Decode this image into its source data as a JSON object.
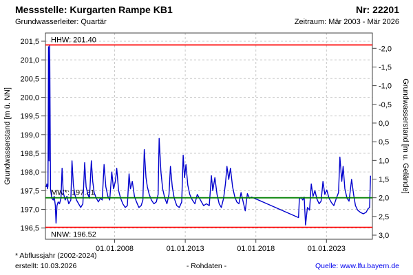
{
  "header": {
    "title": "Messstelle: Kurgarten Rampe KB1",
    "station_number": "Nr: 22201",
    "aquifer": "Grundwasserleiter: Quartär",
    "period": "Zeitraum: Mär 2003 - Mär 2026"
  },
  "footer": {
    "note": "* Abflussjahr (2002-2024)",
    "created": "erstellt:  10.03.2026",
    "center_label": "- Rohdaten -",
    "source": "Quelle: www.lfu.bayern.de"
  },
  "colors": {
    "series": "#0000cd",
    "extreme_line": "#ff0000",
    "mean_line": "#008000",
    "grid": "#c9c9c9",
    "frame": "#404040",
    "text": "#000000",
    "link": "#0000ee"
  },
  "chart_data": {
    "type": "line",
    "title": "",
    "xlabel": "",
    "ylabel_left": "Grundwasserstand [m ü. NN]",
    "ylabel_right": "Grundwasserstand [m u. Gelände]",
    "x_range": [
      2003.1,
      2026.25
    ],
    "y_left_range": [
      196.2,
      201.72
    ],
    "ground_level_m_nn": 199.31,
    "grid": true,
    "x_ticks": [
      {
        "year": 2008,
        "label": "01.01.2008"
      },
      {
        "year": 2013,
        "label": "01.01.2013"
      },
      {
        "year": 2018,
        "label": "01.01.2018"
      },
      {
        "year": 2023,
        "label": "01.01.2023"
      }
    ],
    "y_left_ticks": [
      {
        "v": 196.5,
        "label": "196,5"
      },
      {
        "v": 197.0,
        "label": "197,0"
      },
      {
        "v": 197.5,
        "label": "197,5"
      },
      {
        "v": 198.0,
        "label": "198,0"
      },
      {
        "v": 198.5,
        "label": "198,5"
      },
      {
        "v": 199.0,
        "label": "199,0"
      },
      {
        "v": 199.5,
        "label": "199,5"
      },
      {
        "v": 200.0,
        "label": "200,0"
      },
      {
        "v": 200.5,
        "label": "200,5"
      },
      {
        "v": 201.0,
        "label": "201,0"
      },
      {
        "v": 201.5,
        "label": "201,5"
      }
    ],
    "y_right_ticks": [
      {
        "v": -2.0,
        "label": "-2,0"
      },
      {
        "v": -1.5,
        "label": "-1,5"
      },
      {
        "v": -1.0,
        "label": "-1,0"
      },
      {
        "v": -0.5,
        "label": "-0,5"
      },
      {
        "v": 0.0,
        "label": "0,0"
      },
      {
        "v": 0.5,
        "label": "0,5"
      },
      {
        "v": 1.0,
        "label": "1,0"
      },
      {
        "v": 1.5,
        "label": "1,5"
      },
      {
        "v": 2.0,
        "label": "2,0"
      },
      {
        "v": 2.5,
        "label": "2,5"
      },
      {
        "v": 3.0,
        "label": "3,0"
      }
    ],
    "reference_lines": [
      {
        "name": "HHW",
        "label": "HHW: 201.40",
        "value": 201.4,
        "color": "#ff0000",
        "label_pos": "above"
      },
      {
        "name": "MW",
        "label": "MW*: 197.31",
        "value": 197.31,
        "color": "#008000",
        "label_pos": "above"
      },
      {
        "name": "NNW",
        "label": "NNW: 196.52",
        "value": 196.52,
        "color": "#ff0000",
        "label_pos": "below"
      }
    ],
    "series": [
      {
        "name": "Grundwasserstand Rohdaten",
        "color": "#0000cd",
        "points": [
          [
            2003.15,
            197.6
          ],
          [
            2003.2,
            197.68
          ],
          [
            2003.24,
            197.55
          ],
          [
            2003.28,
            197.62
          ],
          [
            2003.32,
            201.35
          ],
          [
            2003.36,
            198.3
          ],
          [
            2003.4,
            201.4
          ],
          [
            2003.46,
            197.55
          ],
          [
            2003.55,
            197.3
          ],
          [
            2003.65,
            197.25
          ],
          [
            2003.72,
            197.35
          ],
          [
            2003.8,
            197.1
          ],
          [
            2003.85,
            196.63
          ],
          [
            2003.92,
            197.1
          ],
          [
            2004.0,
            197.2
          ],
          [
            2004.1,
            197.15
          ],
          [
            2004.2,
            197.3
          ],
          [
            2004.28,
            198.1
          ],
          [
            2004.36,
            197.45
          ],
          [
            2004.5,
            197.25
          ],
          [
            2004.62,
            197.35
          ],
          [
            2004.75,
            197.15
          ],
          [
            2004.9,
            197.25
          ],
          [
            2004.98,
            198.3
          ],
          [
            2005.08,
            197.65
          ],
          [
            2005.18,
            197.4
          ],
          [
            2005.3,
            197.25
          ],
          [
            2005.45,
            197.15
          ],
          [
            2005.6,
            197.05
          ],
          [
            2005.75,
            197.15
          ],
          [
            2005.88,
            198.25
          ],
          [
            2005.98,
            197.6
          ],
          [
            2006.1,
            197.4
          ],
          [
            2006.22,
            197.3
          ],
          [
            2006.35,
            198.3
          ],
          [
            2006.45,
            197.75
          ],
          [
            2006.55,
            197.45
          ],
          [
            2006.7,
            197.3
          ],
          [
            2006.85,
            197.2
          ],
          [
            2007.0,
            197.3
          ],
          [
            2007.12,
            197.25
          ],
          [
            2007.25,
            198.2
          ],
          [
            2007.38,
            197.6
          ],
          [
            2007.52,
            197.35
          ],
          [
            2007.65,
            197.25
          ],
          [
            2007.8,
            198.0
          ],
          [
            2007.92,
            197.55
          ],
          [
            2008.05,
            197.75
          ],
          [
            2008.15,
            198.1
          ],
          [
            2008.28,
            197.5
          ],
          [
            2008.42,
            197.3
          ],
          [
            2008.58,
            197.15
          ],
          [
            2008.75,
            197.05
          ],
          [
            2008.9,
            197.1
          ],
          [
            2009.02,
            197.95
          ],
          [
            2009.12,
            197.55
          ],
          [
            2009.25,
            197.75
          ],
          [
            2009.4,
            197.35
          ],
          [
            2009.55,
            197.2
          ],
          [
            2009.72,
            197.05
          ],
          [
            2009.88,
            197.1
          ],
          [
            2010.0,
            197.25
          ],
          [
            2010.1,
            198.6
          ],
          [
            2010.22,
            197.85
          ],
          [
            2010.32,
            197.6
          ],
          [
            2010.45,
            197.4
          ],
          [
            2010.6,
            197.25
          ],
          [
            2010.78,
            197.15
          ],
          [
            2010.95,
            197.2
          ],
          [
            2011.08,
            197.4
          ],
          [
            2011.15,
            198.9
          ],
          [
            2011.28,
            198.0
          ],
          [
            2011.4,
            197.55
          ],
          [
            2011.55,
            197.3
          ],
          [
            2011.7,
            197.15
          ],
          [
            2011.85,
            197.4
          ],
          [
            2011.95,
            198.15
          ],
          [
            2012.08,
            197.6
          ],
          [
            2012.22,
            197.3
          ],
          [
            2012.4,
            197.1
          ],
          [
            2012.58,
            197.05
          ],
          [
            2012.75,
            197.2
          ],
          [
            2012.85,
            198.45
          ],
          [
            2012.95,
            197.85
          ],
          [
            2013.05,
            198.2
          ],
          [
            2013.18,
            197.65
          ],
          [
            2013.32,
            197.4
          ],
          [
            2013.5,
            197.25
          ],
          [
            2013.68,
            197.15
          ],
          [
            2013.85,
            197.4
          ],
          [
            2014.0,
            197.3
          ],
          [
            2014.15,
            197.2
          ],
          [
            2014.3,
            197.1
          ],
          [
            2014.5,
            197.15
          ],
          [
            2014.7,
            197.1
          ],
          [
            2014.85,
            197.9
          ],
          [
            2014.95,
            197.5
          ],
          [
            2015.1,
            197.85
          ],
          [
            2015.25,
            197.4
          ],
          [
            2015.4,
            197.15
          ],
          [
            2015.55,
            197.05
          ],
          [
            2015.72,
            197.3
          ],
          [
            2015.85,
            197.7
          ],
          [
            2015.95,
            198.15
          ],
          [
            2016.08,
            197.8
          ],
          [
            2016.2,
            198.1
          ],
          [
            2016.35,
            197.6
          ],
          [
            2016.5,
            197.35
          ],
          [
            2016.65,
            197.2
          ],
          [
            2016.8,
            197.15
          ],
          [
            2016.95,
            197.45
          ],
          [
            2017.1,
            197.2
          ],
          [
            2017.25,
            196.96
          ],
          [
            2017.4,
            197.42
          ],
          [
            2017.55,
            197.3
          ],
          [
            2017.7,
            197.33
          ],
          [
            2021.02,
            196.78
          ],
          [
            2021.08,
            197.28
          ],
          [
            2021.2,
            197.32
          ],
          [
            2021.32,
            197.25
          ],
          [
            2021.42,
            197.33
          ],
          [
            2021.52,
            196.58
          ],
          [
            2021.65,
            197.05
          ],
          [
            2021.8,
            196.98
          ],
          [
            2021.92,
            197.68
          ],
          [
            2022.05,
            197.35
          ],
          [
            2022.18,
            197.5
          ],
          [
            2022.32,
            197.28
          ],
          [
            2022.48,
            197.15
          ],
          [
            2022.62,
            197.22
          ],
          [
            2022.75,
            197.75
          ],
          [
            2022.88,
            197.4
          ],
          [
            2023.02,
            197.52
          ],
          [
            2023.18,
            197.3
          ],
          [
            2023.35,
            197.18
          ],
          [
            2023.52,
            197.1
          ],
          [
            2023.7,
            197.3
          ],
          [
            2023.85,
            197.45
          ],
          [
            2023.95,
            198.4
          ],
          [
            2024.08,
            197.75
          ],
          [
            2024.18,
            198.15
          ],
          [
            2024.3,
            197.55
          ],
          [
            2024.45,
            197.3
          ],
          [
            2024.6,
            197.22
          ],
          [
            2024.78,
            197.8
          ],
          [
            2024.92,
            197.4
          ],
          [
            2025.05,
            197.1
          ],
          [
            2025.2,
            196.98
          ],
          [
            2025.4,
            196.92
          ],
          [
            2025.6,
            196.88
          ],
          [
            2025.8,
            196.92
          ],
          [
            2025.95,
            197.02
          ],
          [
            2026.05,
            197.05
          ],
          [
            2026.12,
            197.9
          ]
        ]
      }
    ]
  }
}
